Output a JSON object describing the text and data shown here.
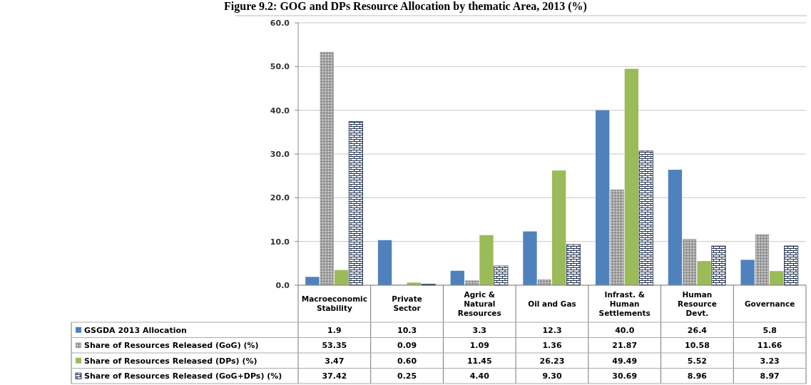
{
  "chart_data": {
    "type": "bar",
    "title": "Figure 9.2: GOG and DPs Resource Allocation by thematic Area, 2013 (%)",
    "categories": [
      "Macroeconomic Stability",
      "Private Sector",
      "Agric & Natural Resources",
      "Oil and Gas",
      "Infrast. & Human Settlements",
      "Human Resource Devt.",
      "Governance"
    ],
    "series": [
      {
        "name": "GSGDA 2013 Allocation",
        "color": "#4f81bd",
        "values": [
          1.9,
          10.3,
          3.3,
          12.3,
          40.0,
          26.4,
          5.8
        ],
        "value_labels": [
          "1.9",
          "10.3",
          "3.3",
          "12.3",
          "40.0",
          "26.4",
          "5.8"
        ]
      },
      {
        "name": "Share of Resources Released (GoG) (%)",
        "color": "#a6a6a6",
        "values": [
          53.35,
          0.09,
          1.09,
          1.36,
          21.87,
          10.58,
          11.66
        ],
        "value_labels": [
          "53.35",
          "0.09",
          "1.09",
          "1.36",
          "21.87",
          "10.58",
          "11.66"
        ]
      },
      {
        "name": "Share of Resources Released (DPs) (%)",
        "color": "#9bbb59",
        "values": [
          3.47,
          0.6,
          11.45,
          26.23,
          49.49,
          5.52,
          3.23
        ],
        "value_labels": [
          "3.47",
          "0.60",
          "11.45",
          "26.23",
          "49.49",
          "5.52",
          "3.23"
        ]
      },
      {
        "name": "Share of Resources Released (GoG+DPs) (%)",
        "color": "#1f2f4f",
        "values": [
          37.42,
          0.25,
          4.4,
          9.3,
          30.69,
          8.96,
          8.97
        ],
        "value_labels": [
          "37.42",
          "0.25",
          "4.40",
          "9.30",
          "30.69",
          "8.96",
          "8.97"
        ]
      }
    ],
    "ylim": [
      0,
      60
    ],
    "yticks": [
      {
        "value": 0,
        "label": "0.0"
      },
      {
        "value": 10,
        "label": "10.0"
      },
      {
        "value": 20,
        "label": "20.0"
      },
      {
        "value": 30,
        "label": "30.0"
      },
      {
        "value": 40,
        "label": "40.0"
      },
      {
        "value": 50,
        "label": "50.0"
      },
      {
        "value": 60,
        "label": "60.0"
      }
    ],
    "grid": "y",
    "legend": "bottom"
  }
}
